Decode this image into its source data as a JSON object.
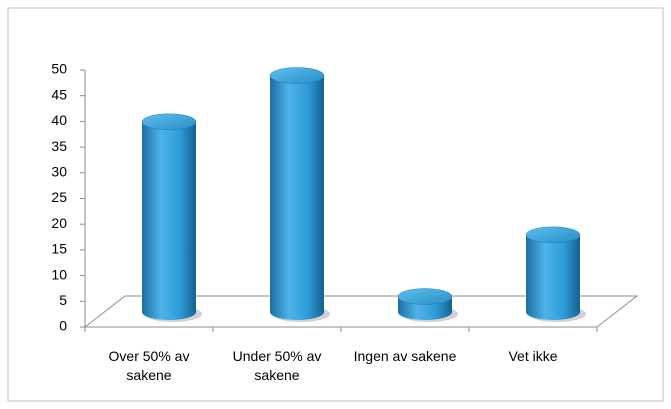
{
  "chart_data": {
    "type": "bar",
    "categories": [
      "Over 50% av sakene",
      "Under 50% av sakene",
      "Ingen av sakene",
      "Vet ikke"
    ],
    "values": [
      37,
      46,
      3,
      15
    ],
    "color": "#2e9bd6",
    "ylim": [
      0,
      50
    ],
    "yticks": [
      0,
      5,
      10,
      15,
      20,
      25,
      30,
      35,
      40,
      45,
      50
    ]
  }
}
